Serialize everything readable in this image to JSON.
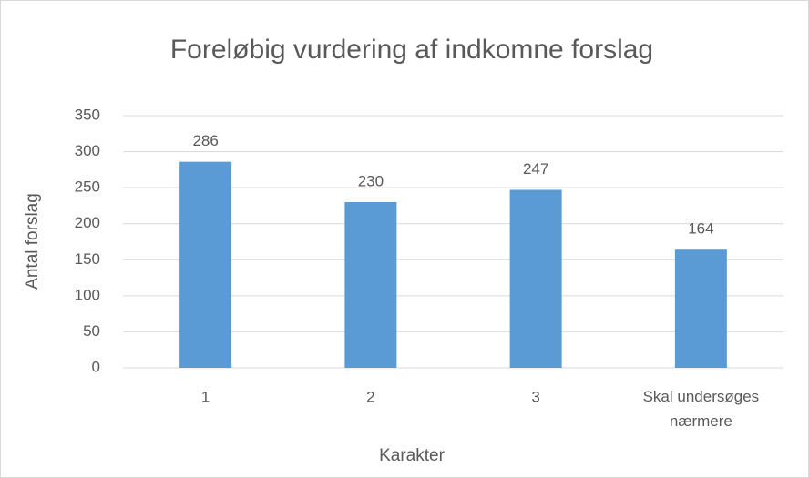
{
  "chart_data": {
    "type": "bar",
    "title": "Foreløbig vurdering af indkomne forslag",
    "categories": [
      "1",
      "2",
      "3",
      "Skal undersøges nærmere"
    ],
    "values": [
      286,
      230,
      247,
      164
    ],
    "color": "#5b9bd5",
    "ylim": [
      0,
      350
    ],
    "yticks": [
      0,
      50,
      100,
      150,
      200,
      250,
      300,
      350
    ],
    "grid": true,
    "xlabel": "Karakter",
    "ylabel": "Antal forslag"
  }
}
